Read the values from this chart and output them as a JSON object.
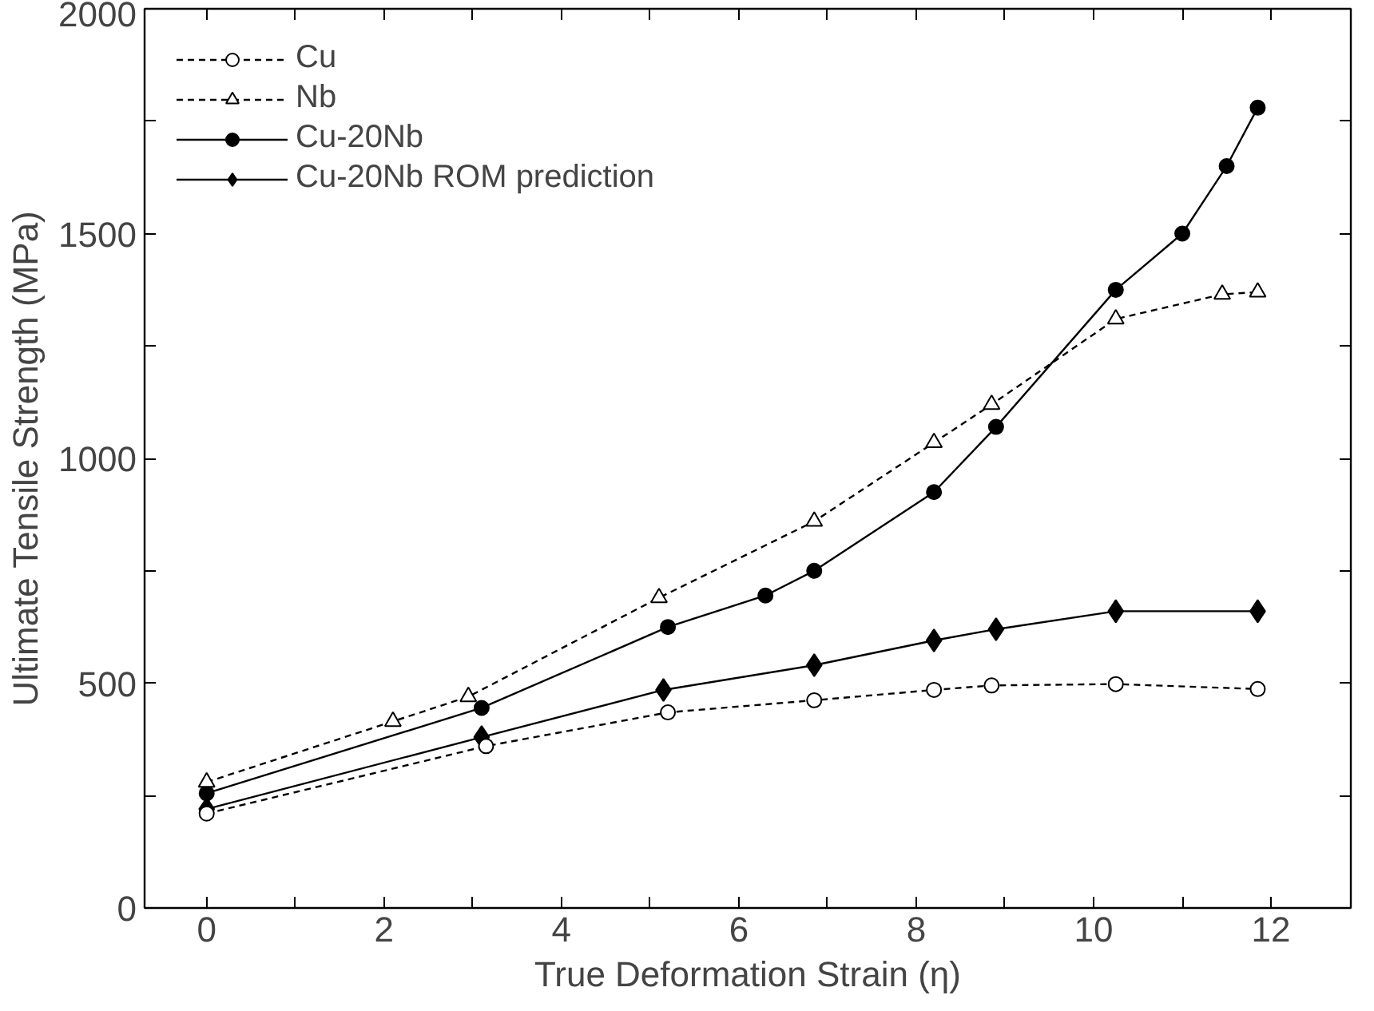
{
  "chart_data": {
    "type": "line",
    "xlabel": "True Deformation Strain (η)",
    "ylabel": "Ultimate Tensile Strength (MPa)",
    "xlim": [
      -0.7,
      12.9
    ],
    "ylim": [
      0,
      2000
    ],
    "xticks": [
      0,
      {
        "value": 1,
        "label": null
      },
      2,
      {
        "value": 3,
        "label": null
      },
      4,
      {
        "value": 5,
        "label": null
      },
      6,
      {
        "value": 7,
        "label": null
      },
      8,
      {
        "value": 9,
        "label": null
      },
      10,
      {
        "value": 11,
        "label": null
      },
      12
    ],
    "yticks": [
      0,
      {
        "value": 250,
        "label": null
      },
      500,
      {
        "value": 750,
        "label": null
      },
      1000,
      {
        "value": 1250,
        "label": null
      },
      1500,
      {
        "value": 1750,
        "label": null
      },
      2000
    ],
    "grid": false,
    "legend": "top left",
    "series": [
      {
        "name": "Cu",
        "color": "#000000",
        "marker": "circle",
        "line_style": "dashed",
        "x": [
          0,
          3.15,
          5.2,
          6.85,
          8.2,
          8.85,
          10.25,
          11.85
        ],
        "values": [
          210,
          360,
          435,
          462,
          485,
          495,
          498,
          487
        ]
      },
      {
        "name": "Nb",
        "color": "#000000",
        "marker": "triangle",
        "line_style": "dashed",
        "x": [
          0,
          2.1,
          2.95,
          5.1,
          6.85,
          8.2,
          8.85,
          10.25,
          11.45,
          11.85
        ],
        "values": [
          280,
          415,
          470,
          690,
          860,
          1035,
          1120,
          1310,
          1365,
          1370
        ]
      },
      {
        "name": "Cu-20Nb",
        "color": "#000000",
        "marker": "circle",
        "line_style": "solid",
        "x": [
          0,
          3.1,
          5.2,
          6.3,
          6.85,
          8.2,
          8.9,
          10.25,
          11.0,
          11.5,
          11.85
        ],
        "values": [
          255,
          445,
          625,
          695,
          750,
          925,
          1070,
          1375,
          1500,
          1650,
          1780
        ]
      },
      {
        "name": "Cu-20Nb ROM prediction",
        "color": "#000000",
        "marker": "diamond",
        "line_style": "solid",
        "x": [
          0,
          3.1,
          5.15,
          6.85,
          8.2,
          8.9,
          10.25,
          11.85
        ],
        "values": [
          220,
          380,
          485,
          540,
          595,
          620,
          660,
          660
        ]
      }
    ]
  }
}
